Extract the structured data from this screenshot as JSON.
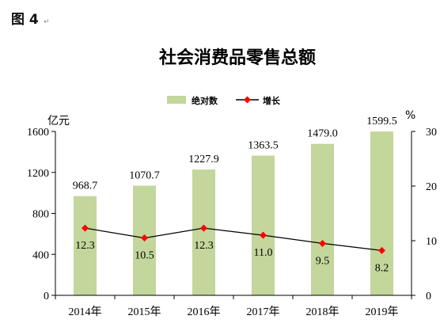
{
  "figure": {
    "label": "图 4"
  },
  "chart_data": {
    "type": "bar",
    "title": "社会消费品零售总额",
    "categories": [
      "2014年",
      "2015年",
      "2016年",
      "2017年",
      "2018年",
      "2019年"
    ],
    "series": [
      {
        "name": "绝对数",
        "kind": "bar",
        "axis": "left",
        "color": "#c3d69b",
        "values": [
          968.7,
          1070.7,
          1227.9,
          1363.5,
          1479.0,
          1599.5
        ],
        "labels": [
          "968.7",
          "1070.7",
          "1227.9",
          "1363.5",
          "1479.0",
          "1599.5"
        ]
      },
      {
        "name": "增长",
        "kind": "line",
        "axis": "right",
        "color": "#000000",
        "marker_color": "#ff0000",
        "values": [
          12.3,
          10.5,
          12.3,
          11.0,
          9.5,
          8.2
        ],
        "labels": [
          "12.3",
          "10.5",
          "12.3",
          "11.0",
          "9.5",
          "8.2"
        ]
      }
    ],
    "y_left": {
      "unit": "亿元",
      "min": 0,
      "max": 1600,
      "ticks": [
        0,
        400,
        800,
        1200,
        1600
      ]
    },
    "y_right": {
      "unit": "%",
      "min": 0,
      "max": 30,
      "ticks": [
        0,
        10,
        20,
        30
      ]
    },
    "grid": false,
    "legend_position": "top-center"
  }
}
